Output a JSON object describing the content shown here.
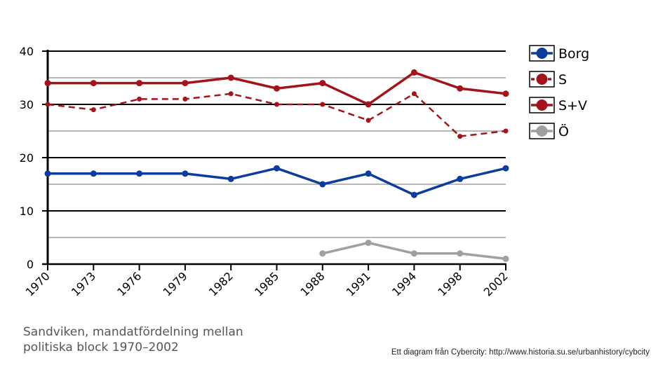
{
  "chart_data": {
    "type": "line",
    "title": "Sandviken, mandatfördelning mellan politiska block 1970–2002",
    "xlabel": "",
    "ylabel": "",
    "categories": [
      "1970",
      "1973",
      "1976",
      "1979",
      "1982",
      "1985",
      "1988",
      "1991",
      "1994",
      "1998",
      "2002"
    ],
    "ylim": [
      0,
      40
    ],
    "yticks": [
      0,
      10,
      20,
      30,
      40
    ],
    "minor_gridlines": [
      5,
      15,
      25,
      35
    ],
    "legend_position": "right",
    "series": [
      {
        "name": "Borg",
        "color": "#0c3d9e",
        "dashed": false,
        "values": [
          17,
          17,
          17,
          17,
          16,
          18,
          15,
          17,
          13,
          16,
          18
        ]
      },
      {
        "name": "S",
        "color": "#a31319",
        "dashed": true,
        "values": [
          30,
          29,
          31,
          31,
          32,
          30,
          30,
          27,
          32,
          24,
          25
        ]
      },
      {
        "name": "S+V",
        "color": "#a31319",
        "dashed": false,
        "values": [
          34,
          34,
          34,
          34,
          35,
          33,
          34,
          30,
          36,
          33,
          32
        ]
      },
      {
        "name": "Ö",
        "color": "#a0a0a0",
        "dashed": false,
        "values": [
          null,
          null,
          null,
          null,
          null,
          null,
          2,
          4,
          2,
          2,
          1
        ]
      }
    ]
  },
  "caption": "Sandviken, mandatfördelning mellan\npolitiska block 1970–2002",
  "credit": "Ett diagram från Cybercity: http://www.historia.su.se/urbanhistory/cybcity"
}
